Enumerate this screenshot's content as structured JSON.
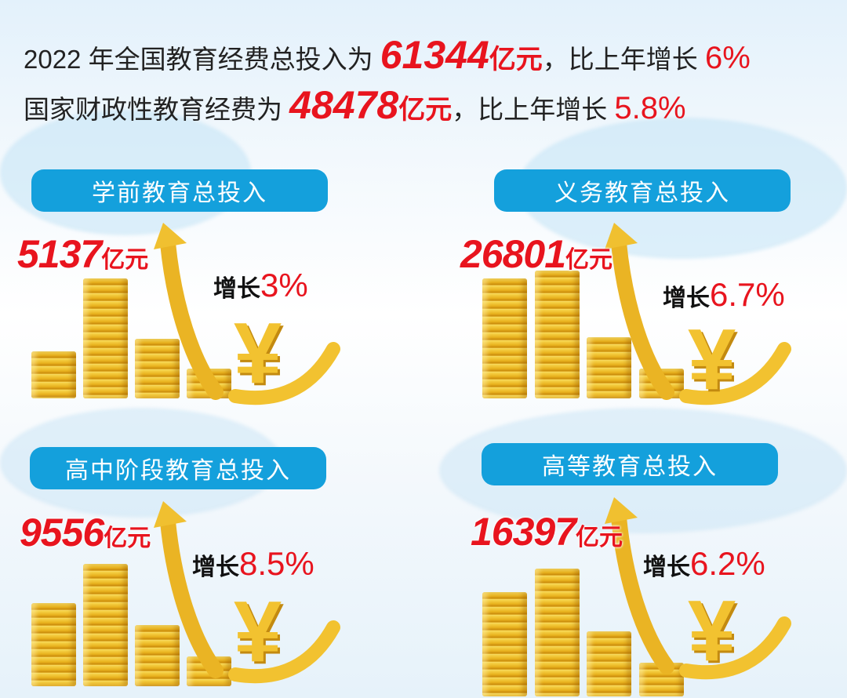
{
  "headline": {
    "line1": {
      "prefix": "2022 年全国教育经费总投入为 ",
      "amount": "61344",
      "unit": "亿元",
      "middle": "，比上年增长 ",
      "growth": "6%"
    },
    "line2": {
      "prefix": "国家财政性教育经费为 ",
      "amount": "48478",
      "unit": "亿元",
      "middle": "，比上年增长 ",
      "growth": "5.8%"
    }
  },
  "panels": [
    {
      "title": "学前教育总投入",
      "amount": "5137",
      "unit": "亿元",
      "growth_label": "增长",
      "growth": "3%"
    },
    {
      "title": "义务教育总投入",
      "amount": "26801",
      "unit": "亿元",
      "growth_label": "增长",
      "growth": "6.7%"
    },
    {
      "title": "高中阶段教育总投入",
      "amount": "9556",
      "unit": "亿元",
      "growth_label": "增长",
      "growth": "8.5%"
    },
    {
      "title": "高等教育总投入",
      "amount": "16397",
      "unit": "亿元",
      "growth_label": "增长",
      "growth": "6.2%"
    }
  ],
  "icons": {
    "currency": "yen-icon",
    "trend": "up-arrow-icon"
  },
  "colors": {
    "accent_red": "#e8141e",
    "banner_blue": "#14a0dc",
    "gold": "#f2c230"
  }
}
